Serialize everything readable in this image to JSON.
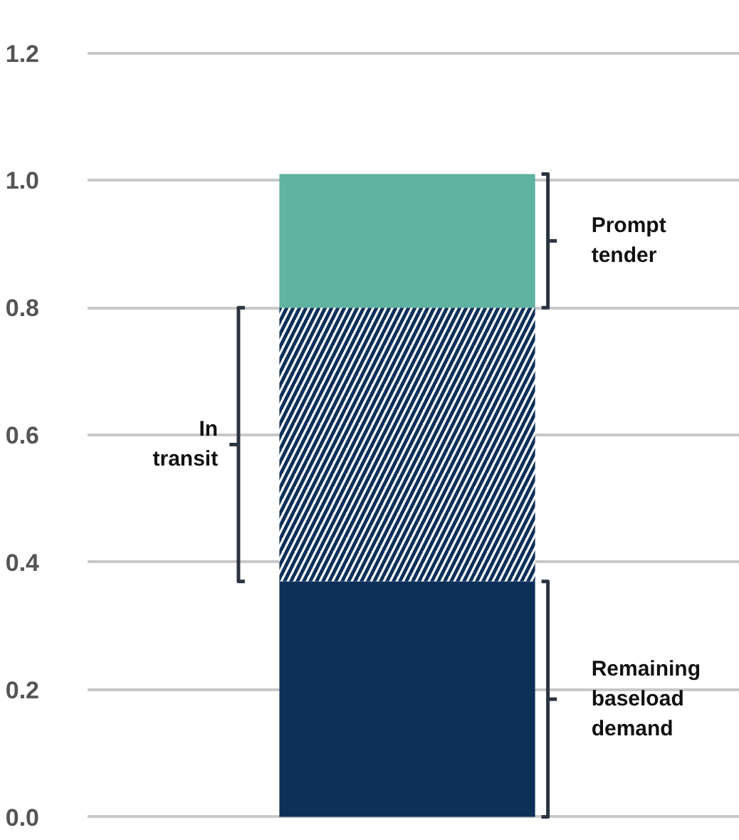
{
  "chart_data": {
    "type": "bar",
    "stacked": true,
    "categories": [
      null
    ],
    "series": [
      {
        "name": "Remaining baseload demand",
        "color": "#0d3059",
        "values": [
          0.37
        ]
      },
      {
        "name": "In transit",
        "color": "#0d3059",
        "values": [
          0.43
        ]
      },
      {
        "name": "Prompt tender",
        "color": "#5fb3a0",
        "values": [
          0.21
        ]
      }
    ],
    "ylim": [
      0,
      1.2
    ],
    "yticks": [
      {
        "value": 0,
        "label": "0.0"
      },
      0.2,
      0.4,
      0.6,
      0.8,
      {
        "value": 1,
        "label": "1.0"
      },
      1.2
    ],
    "grid": "y"
  }
}
